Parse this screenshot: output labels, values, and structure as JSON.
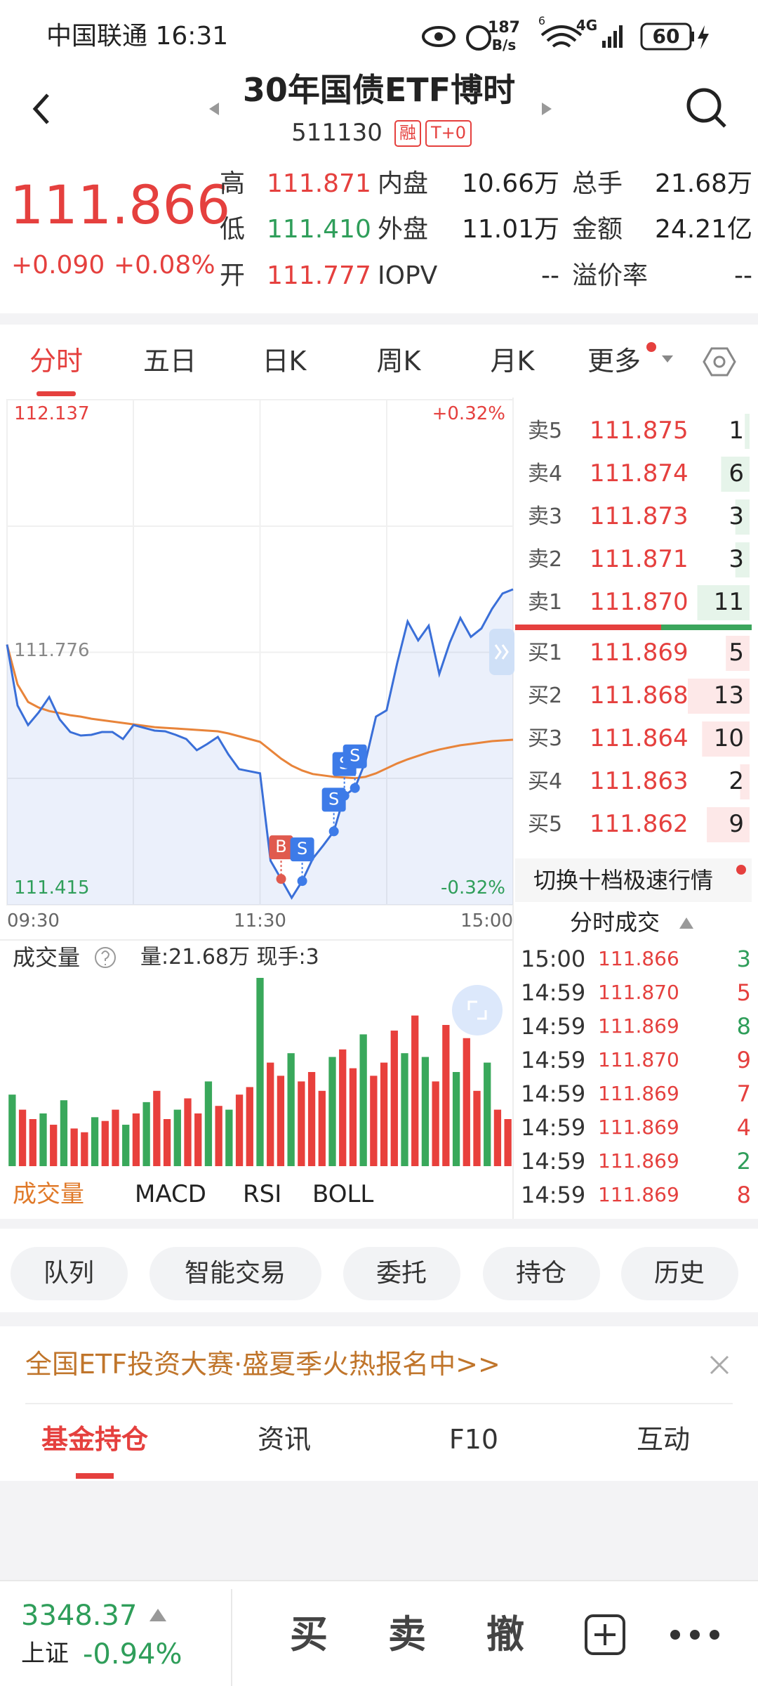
{
  "status_bar": {
    "carrier_time": "中国联通 16:31",
    "speed": "187",
    "speed_unit": "B/s",
    "wifi_label": "6",
    "network": "4G",
    "battery": "60"
  },
  "header": {
    "title": "30年国债ETF博时",
    "code": "511130",
    "tags": [
      "融",
      "T+0"
    ]
  },
  "quote": {
    "price": "111.866",
    "change": "+0.090",
    "change_pct": "+0.08%",
    "stats": [
      [
        "高",
        "111.871",
        "内盘",
        "10.66万",
        "总手",
        "21.68万"
      ],
      [
        "低",
        "111.410",
        "外盘",
        "11.01万",
        "金额",
        "24.21亿"
      ],
      [
        "开",
        "111.777",
        "IOPV",
        "--",
        "溢价率",
        "--"
      ]
    ]
  },
  "tabs": [
    "分时",
    "五日",
    "日K",
    "周K",
    "月K",
    "更多"
  ],
  "intraday": {
    "type": "line",
    "categories": [
      "09:30",
      "09:35",
      "09:40",
      "09:45",
      "09:50",
      "09:55",
      "10:00",
      "10:05",
      "10:10",
      "10:15",
      "10:20",
      "10:25",
      "10:30",
      "10:35",
      "10:40",
      "10:45",
      "10:50",
      "10:55",
      "11:00",
      "11:05",
      "11:10",
      "11:15",
      "11:20",
      "11:25",
      "11:30",
      "13:05",
      "13:10",
      "13:15",
      "13:20",
      "13:25",
      "13:30",
      "13:35",
      "13:40",
      "13:45",
      "13:50",
      "13:55",
      "14:00",
      "14:05",
      "14:10",
      "14:15",
      "14:20",
      "14:25",
      "14:30",
      "14:35",
      "14:40",
      "14:45",
      "14:50",
      "14:55",
      "15:00"
    ],
    "price": {
      "color": "#3a6fd8",
      "values": [
        111.787,
        111.7,
        111.672,
        111.69,
        111.712,
        111.68,
        111.662,
        111.657,
        111.658,
        111.662,
        111.662,
        111.652,
        111.672,
        111.668,
        111.664,
        111.663,
        111.658,
        111.652,
        111.636,
        111.645,
        111.655,
        111.63,
        111.609,
        111.606,
        111.603,
        111.478,
        111.452,
        111.425,
        111.449,
        111.481,
        111.5,
        111.52,
        111.571,
        111.582,
        111.62,
        111.684,
        111.693,
        111.76,
        111.82,
        111.793,
        111.814,
        111.745,
        111.79,
        111.825,
        111.798,
        111.81,
        111.838,
        111.86,
        111.866
      ]
    },
    "average": {
      "color": "#e8843a",
      "values": [
        111.787,
        111.73,
        111.705,
        111.697,
        111.692,
        111.689,
        111.686,
        111.684,
        111.681,
        111.679,
        111.677,
        111.675,
        111.673,
        111.671,
        111.669,
        111.668,
        111.667,
        111.666,
        111.665,
        111.664,
        111.663,
        111.66,
        111.656,
        111.652,
        111.648,
        111.636,
        111.624,
        111.614,
        111.607,
        111.602,
        111.6,
        111.598,
        111.597,
        111.596,
        111.598,
        111.603,
        111.61,
        111.617,
        111.623,
        111.628,
        111.633,
        111.637,
        111.64,
        111.643,
        111.645,
        111.647,
        111.649,
        111.65,
        111.651
      ]
    },
    "ylim": [
      111.415,
      112.137
    ],
    "yticks": [
      111.415,
      111.776,
      112.137
    ],
    "y2lim": [
      -0.32,
      0.32
    ],
    "y2ticks": [
      {
        "value": -0.32,
        "label": "-0.32%"
      },
      {
        "value": 0.32,
        "label": "+0.32%"
      }
    ],
    "xticks": [
      "09:30",
      "11:30",
      "15:00"
    ],
    "grid": true,
    "markers": [
      {
        "label": "B",
        "time": "13:10",
        "color": "#e05a4e"
      },
      {
        "label": "S",
        "time": "13:20",
        "color": "#3d7be8"
      },
      {
        "label": "S",
        "time": "13:35",
        "color": "#3d7be8"
      },
      {
        "label": "S",
        "time": "13:40",
        "color": "#3d7be8"
      },
      {
        "label": "S",
        "time": "13:45",
        "color": "#3d7be8"
      }
    ]
  },
  "volume": {
    "title": "成交量",
    "summary": "量:21.68万 现手:3",
    "values": [
      38,
      30,
      25,
      28,
      22,
      35,
      20,
      18,
      26,
      24,
      30,
      22,
      28,
      34,
      40,
      25,
      30,
      36,
      28,
      45,
      32,
      30,
      38,
      42,
      100,
      55,
      48,
      60,
      45,
      50,
      40,
      58,
      62,
      52,
      70,
      48,
      55,
      72,
      60,
      80,
      58,
      45,
      75,
      50,
      68,
      40,
      55,
      30,
      25
    ],
    "colors": [
      "#39a85b",
      "#e8403c",
      "#e8403c",
      "#39a85b",
      "#e8403c",
      "#39a85b",
      "#e8403c",
      "#e8403c",
      "#39a85b",
      "#e8403c",
      "#e8403c",
      "#39a85b",
      "#e8403c",
      "#39a85b",
      "#e8403c",
      "#e8403c",
      "#39a85b",
      "#e8403c",
      "#e8403c",
      "#39a85b",
      "#e8403c",
      "#39a85b",
      "#e8403c",
      "#e8403c",
      "#39a85b",
      "#e8403c",
      "#e8403c",
      "#39a85b",
      "#e8403c",
      "#e8403c",
      "#e8403c",
      "#39a85b",
      "#e8403c",
      "#e8403c",
      "#39a85b",
      "#e8403c",
      "#e8403c",
      "#e8403c",
      "#39a85b",
      "#e8403c",
      "#39a85b",
      "#e8403c",
      "#e8403c",
      "#39a85b",
      "#e8403c",
      "#e8403c",
      "#39a85b",
      "#e8403c",
      "#e8403c"
    ]
  },
  "indicators": [
    "成交量",
    "MACD",
    "RSI",
    "BOLL"
  ],
  "order_book": {
    "asks": [
      {
        "label": "卖5",
        "price": "111.875",
        "qty": 1
      },
      {
        "label": "卖4",
        "price": "111.874",
        "qty": 6
      },
      {
        "label": "卖3",
        "price": "111.873",
        "qty": 3
      },
      {
        "label": "卖2",
        "price": "111.871",
        "qty": 3
      },
      {
        "label": "卖1",
        "price": "111.870",
        "qty": 11
      }
    ],
    "bids": [
      {
        "label": "买1",
        "price": "111.869",
        "qty": 5
      },
      {
        "label": "买2",
        "price": "111.868",
        "qty": 13
      },
      {
        "label": "买3",
        "price": "111.864",
        "qty": 10
      },
      {
        "label": "买4",
        "price": "111.863",
        "qty": 2
      },
      {
        "label": "买5",
        "price": "111.862",
        "qty": 9
      }
    ],
    "switch": "切换十档极速行情"
  },
  "trades": {
    "title": "分时成交",
    "rows": [
      {
        "time": "15:00",
        "price": "111.866",
        "qty": 3,
        "color": "#2f9e5a"
      },
      {
        "time": "14:59",
        "price": "111.870",
        "qty": 5,
        "color": "#e5403e"
      },
      {
        "time": "14:59",
        "price": "111.869",
        "qty": 8,
        "color": "#2f9e5a"
      },
      {
        "time": "14:59",
        "price": "111.870",
        "qty": 9,
        "color": "#e5403e"
      },
      {
        "time": "14:59",
        "price": "111.869",
        "qty": 7,
        "color": "#e5403e"
      },
      {
        "time": "14:59",
        "price": "111.869",
        "qty": 4,
        "color": "#e5403e"
      },
      {
        "time": "14:59",
        "price": "111.869",
        "qty": 2,
        "color": "#2f9e5a"
      },
      {
        "time": "14:59",
        "price": "111.869",
        "qty": 8,
        "color": "#e5403e"
      }
    ]
  },
  "actions": [
    "队列",
    "智能交易",
    "委托",
    "持仓",
    "历史"
  ],
  "banner": "全国ETF投资大赛·盛夏季火热报名中>>",
  "bottom_tabs": [
    "基金持仓",
    "资讯",
    "F10",
    "互动"
  ],
  "footer": {
    "index_value": "3348.37",
    "index_name": "上证",
    "index_change": "-0.94%",
    "actions": [
      "买",
      "卖",
      "撤"
    ]
  }
}
